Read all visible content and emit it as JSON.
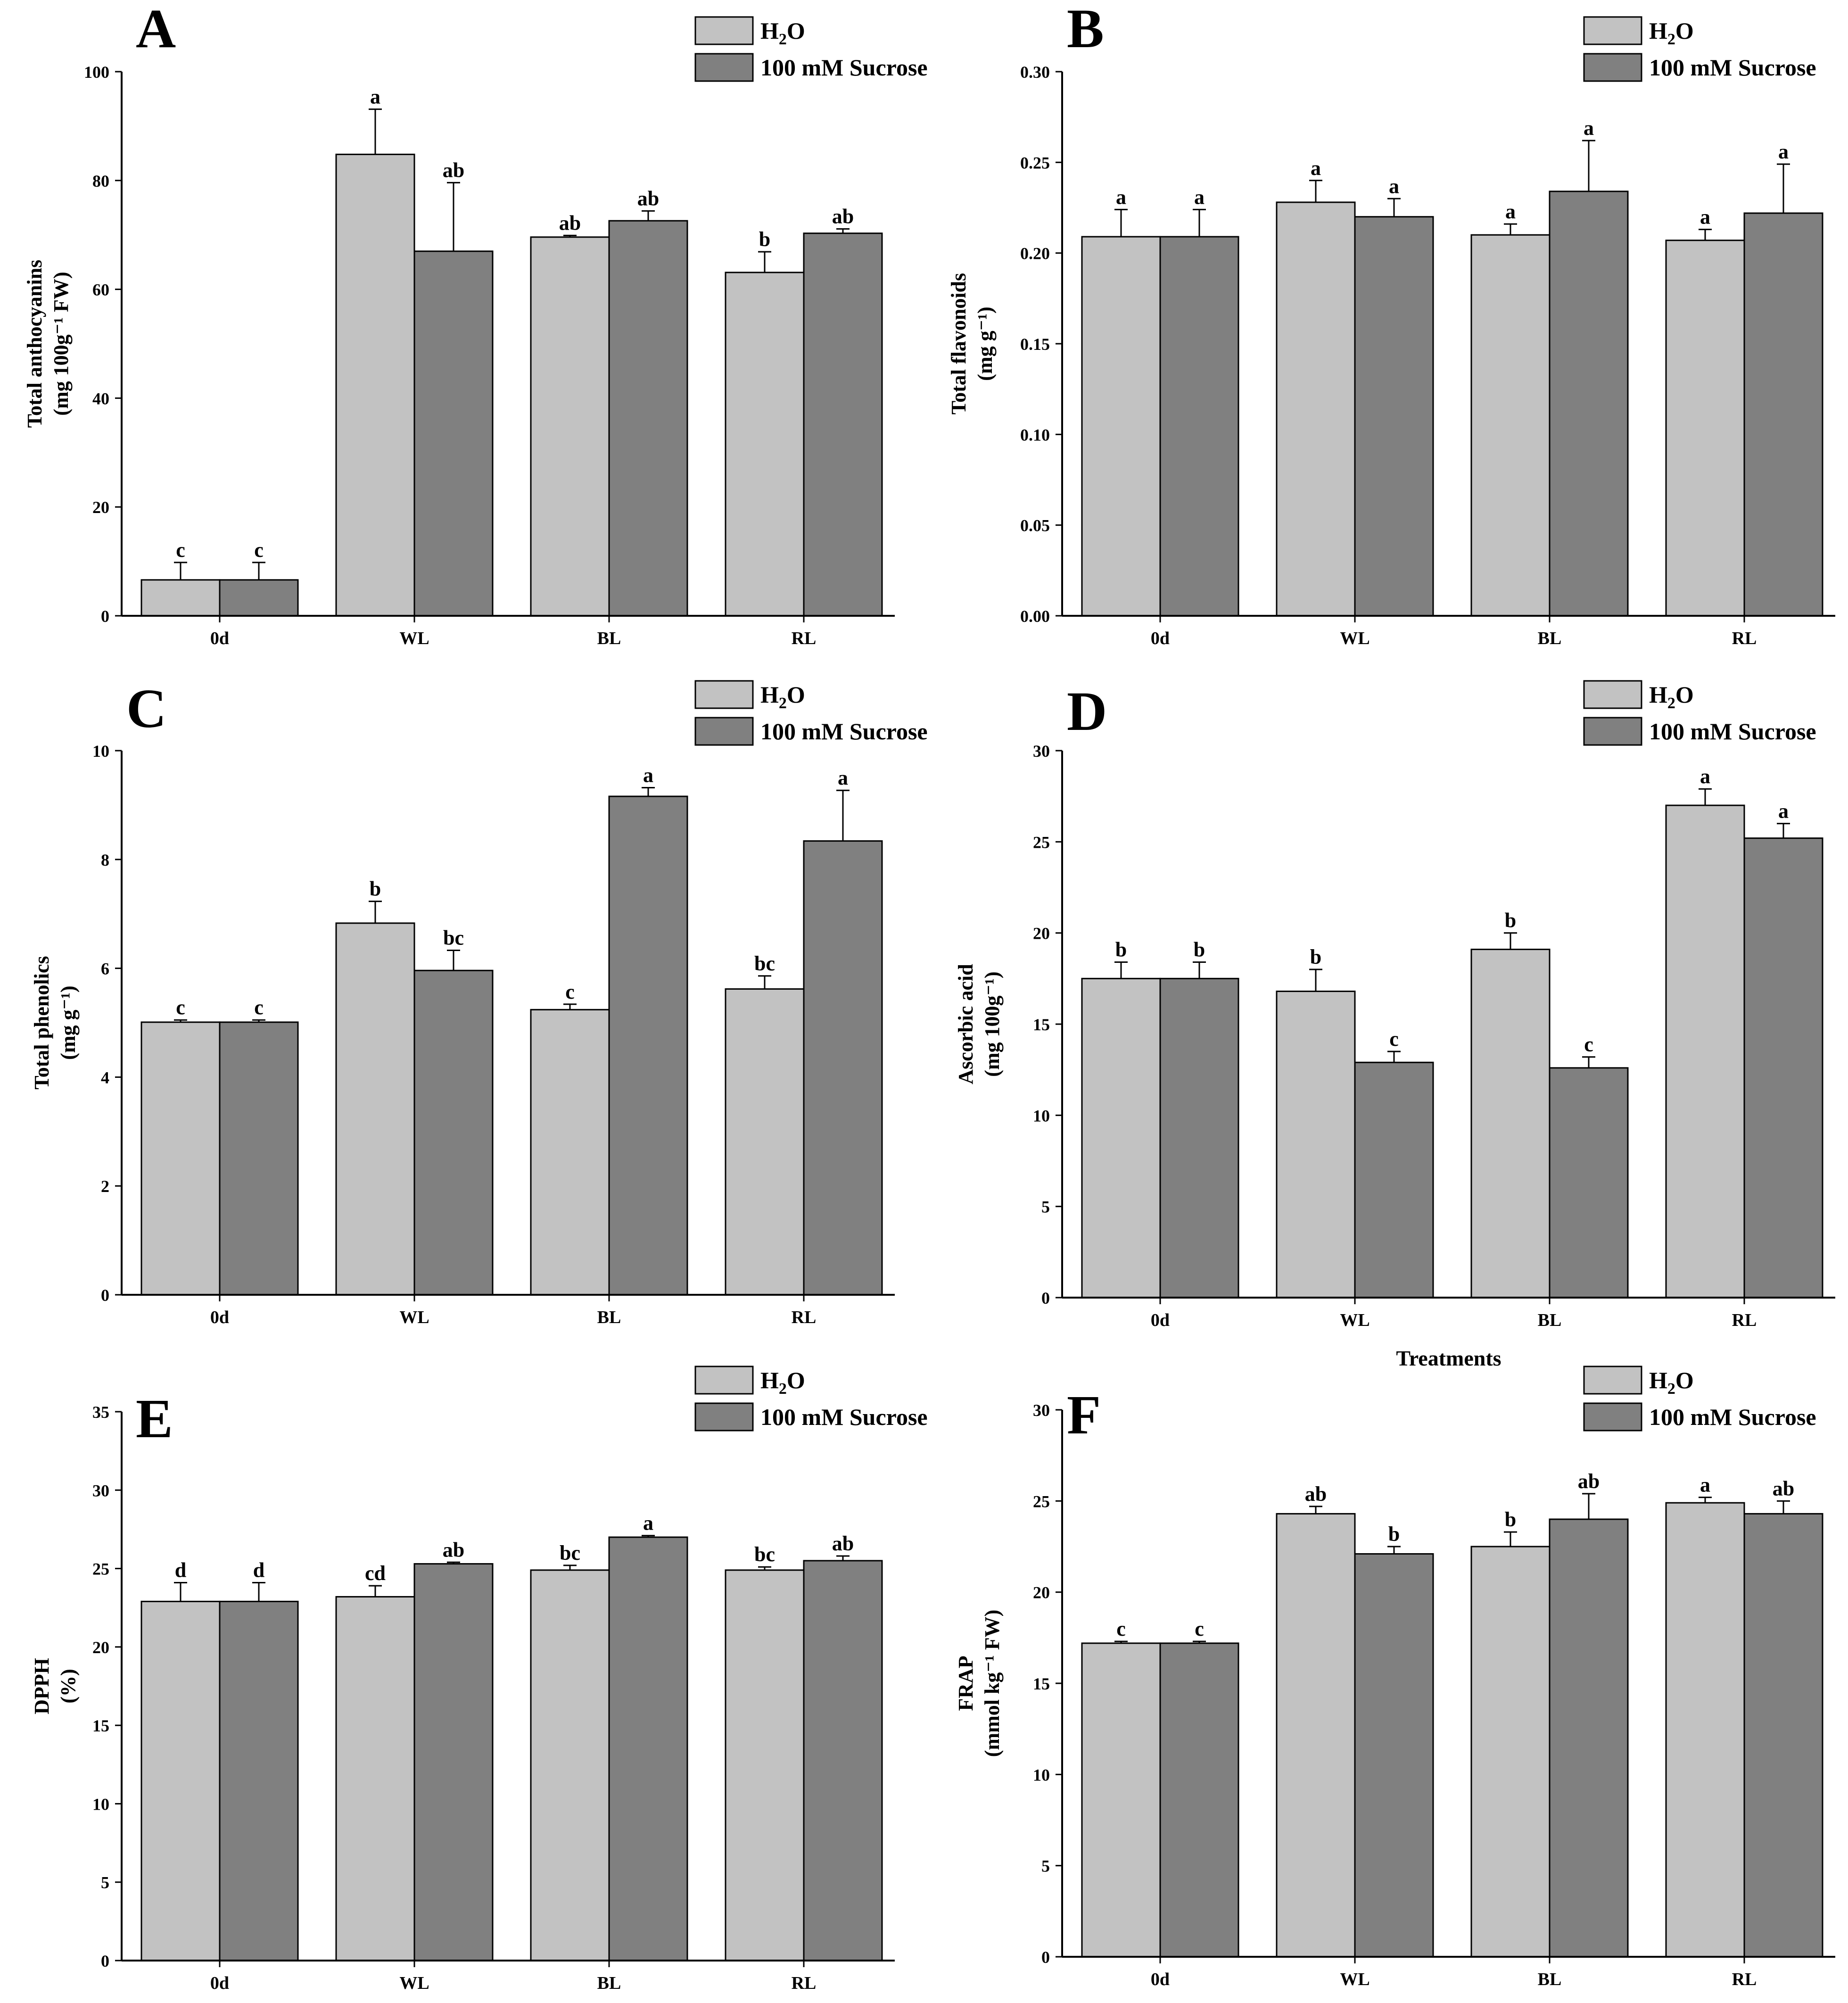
{
  "legend": {
    "series": [
      "H2O",
      "100 mM Sucrose"
    ]
  },
  "colors": {
    "h2o": "#c2c2c2",
    "sucrose": "#808080",
    "axis": "#000000"
  },
  "chart_data": [
    {
      "panel": "A",
      "type": "bar",
      "categories": [
        "0d",
        "WL",
        "BL",
        "RL"
      ],
      "ylabel_line1": "Total anthocyanins",
      "ylabel_line2": "(mg 100g⁻¹ FW)",
      "xlabel": "",
      "ylim": [
        0,
        100
      ],
      "yticks": [
        0,
        20,
        40,
        60,
        80,
        100
      ],
      "series": [
        {
          "name": "H2O",
          "values": [
            6.6,
            84.8,
            69.6,
            63.1
          ],
          "errors": [
            3.2,
            8.3,
            0.3,
            3.8
          ],
          "letters": [
            "c",
            "a",
            "ab",
            "b"
          ]
        },
        {
          "name": "100 mM Sucrose",
          "values": [
            6.6,
            67.0,
            72.6,
            70.3
          ],
          "errors": [
            3.2,
            12.6,
            1.8,
            0.8
          ],
          "letters": [
            "c",
            "ab",
            "ab",
            "ab"
          ]
        }
      ]
    },
    {
      "panel": "B",
      "type": "bar",
      "categories": [
        "0d",
        "WL",
        "BL",
        "RL"
      ],
      "ylabel_line1": "Total  flavonoids",
      "ylabel_line2": "(mg g⁻¹)",
      "xlabel": "",
      "ylim": [
        0,
        0.3
      ],
      "yticks": [
        "0.00",
        "0.05",
        "0.10",
        "0.15",
        "0.20",
        "0.25",
        "0.30"
      ],
      "series": [
        {
          "name": "H2O",
          "values": [
            0.209,
            0.228,
            0.21,
            0.207
          ],
          "errors": [
            0.015,
            0.012,
            0.006,
            0.006
          ],
          "letters": [
            "a",
            "a",
            "a",
            "a"
          ]
        },
        {
          "name": "100 mM Sucrose",
          "values": [
            0.209,
            0.22,
            0.234,
            0.222
          ],
          "errors": [
            0.015,
            0.01,
            0.028,
            0.027
          ],
          "letters": [
            "a",
            "a",
            "a",
            "a"
          ]
        }
      ]
    },
    {
      "panel": "C",
      "type": "bar",
      "categories": [
        "0d",
        "WL",
        "BL",
        "RL"
      ],
      "ylabel_line1": "Total phenolics",
      "ylabel_line2": "(mg g⁻¹)",
      "xlabel": "",
      "ylim": [
        0,
        10
      ],
      "yticks": [
        0,
        2,
        4,
        6,
        8,
        10
      ],
      "series": [
        {
          "name": "H2O",
          "values": [
            5.01,
            6.83,
            5.24,
            5.62
          ],
          "errors": [
            0.04,
            0.4,
            0.1,
            0.24
          ],
          "letters": [
            "c",
            "b",
            "c",
            "bc"
          ]
        },
        {
          "name": "100 mM Sucrose",
          "values": [
            5.01,
            5.96,
            9.16,
            8.34
          ],
          "errors": [
            0.04,
            0.37,
            0.16,
            0.93
          ],
          "letters": [
            "c",
            "bc",
            "a",
            "a"
          ]
        }
      ]
    },
    {
      "panel": "D",
      "type": "bar",
      "categories": [
        "0d",
        "WL",
        "BL",
        "RL"
      ],
      "ylabel_line1": "Ascorbic acid",
      "ylabel_line2": "(mg 100g⁻¹)",
      "xlabel": "Treatments",
      "ylim": [
        0,
        30
      ],
      "yticks": [
        0,
        5,
        10,
        15,
        20,
        25,
        30
      ],
      "series": [
        {
          "name": "H2O",
          "values": [
            17.5,
            16.8,
            19.1,
            27.0
          ],
          "errors": [
            0.9,
            1.2,
            0.9,
            0.9
          ],
          "letters": [
            "b",
            "b",
            "b",
            "a"
          ]
        },
        {
          "name": "100 mM Sucrose",
          "values": [
            17.5,
            12.9,
            12.6,
            25.2
          ],
          "errors": [
            0.9,
            0.6,
            0.6,
            0.8
          ],
          "letters": [
            "b",
            "c",
            "c",
            "a"
          ]
        }
      ]
    },
    {
      "panel": "E",
      "type": "bar",
      "categories": [
        "0d",
        "WL",
        "BL",
        "RL"
      ],
      "ylabel_line1": "DPPH",
      "ylabel_line2": "(%)",
      "xlabel": "",
      "ylim": [
        0,
        35
      ],
      "yticks": [
        0,
        5,
        10,
        15,
        20,
        25,
        30,
        35
      ],
      "series": [
        {
          "name": "H2O",
          "values": [
            22.9,
            23.2,
            24.9,
            24.9
          ],
          "errors": [
            1.2,
            0.7,
            0.3,
            0.2
          ],
          "letters": [
            "d",
            "cd",
            "bc",
            "bc"
          ]
        },
        {
          "name": "100 mM Sucrose",
          "values": [
            22.9,
            25.3,
            27.0,
            25.5
          ],
          "errors": [
            1.2,
            0.1,
            0.1,
            0.3
          ],
          "letters": [
            "d",
            "ab",
            "a",
            "ab"
          ]
        }
      ]
    },
    {
      "panel": "F",
      "type": "bar",
      "categories": [
        "0d",
        "WL",
        "BL",
        "RL"
      ],
      "ylabel_line1": "FRAP",
      "ylabel_line2": "(mmol kg⁻¹ FW)",
      "xlabel": "",
      "ylim": [
        0,
        30
      ],
      "yticks": [
        0,
        5,
        10,
        15,
        20,
        25,
        30
      ],
      "series": [
        {
          "name": "H2O",
          "values": [
            17.2,
            24.3,
            22.5,
            24.9
          ],
          "errors": [
            0.1,
            0.4,
            0.8,
            0.3
          ],
          "letters": [
            "c",
            "ab",
            "b",
            "a"
          ]
        },
        {
          "name": "100 mM Sucrose",
          "values": [
            17.2,
            22.1,
            24.0,
            24.3
          ],
          "errors": [
            0.1,
            0.4,
            1.4,
            0.7
          ],
          "letters": [
            "c",
            "b",
            "ab",
            "ab"
          ]
        }
      ]
    }
  ]
}
